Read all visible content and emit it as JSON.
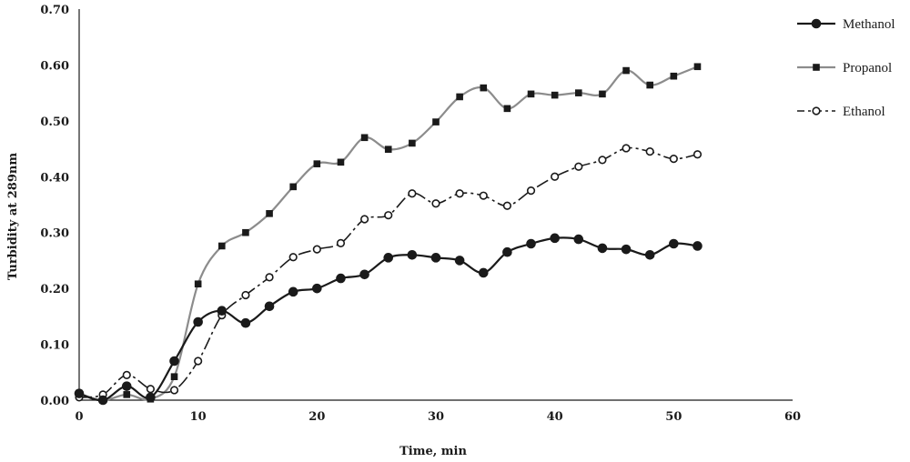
{
  "chart_data": {
    "type": "line",
    "title": "",
    "xlabel": "Time, min",
    "ylabel": "Turbidity at 289nm",
    "xlim": [
      0,
      60
    ],
    "ylim": [
      0,
      0.7
    ],
    "xticks": [
      "0",
      "10",
      "20",
      "30",
      "40",
      "50",
      "60"
    ],
    "yticks": [
      "0.00",
      "0.10",
      "0.20",
      "0.30",
      "0.40",
      "0.50",
      "0.60",
      "0.70"
    ],
    "grid": false,
    "legend_position": "top-right",
    "series": [
      {
        "name": "Methanol",
        "color": "#1a1a1a",
        "marker": "circle-filled",
        "x": [
          0,
          2,
          4,
          6,
          8,
          10,
          12,
          14,
          16,
          18,
          20,
          22,
          24,
          26,
          28,
          30,
          32,
          34,
          36,
          38,
          40,
          42,
          44,
          46,
          48,
          50,
          52
        ],
        "y": [
          0.012,
          0.0,
          0.025,
          0.005,
          0.07,
          0.14,
          0.16,
          0.138,
          0.168,
          0.194,
          0.2,
          0.218,
          0.225,
          0.255,
          0.26,
          0.255,
          0.25,
          0.228,
          0.265,
          0.28,
          0.29,
          0.288,
          0.272,
          0.27,
          0.26,
          0.28,
          0.276
        ]
      },
      {
        "name": "Propanol",
        "color": "#8c8c8c",
        "marker": "square-filled",
        "x": [
          0,
          2,
          4,
          6,
          8,
          10,
          12,
          14,
          16,
          18,
          20,
          22,
          24,
          26,
          28,
          30,
          32,
          34,
          36,
          38,
          40,
          42,
          44,
          46,
          48,
          50,
          52
        ],
        "y": [
          0.012,
          0.0,
          0.01,
          0.002,
          0.042,
          0.208,
          0.276,
          0.3,
          0.334,
          0.382,
          0.423,
          0.426,
          0.47,
          0.449,
          0.46,
          0.498,
          0.543,
          0.559,
          0.522,
          0.548,
          0.546,
          0.55,
          0.548,
          0.59,
          0.564,
          0.58,
          0.597
        ]
      },
      {
        "name": "Ethanol",
        "color": "#1a1a1a",
        "marker": "circle-open",
        "x": [
          0,
          2,
          4,
          6,
          8,
          10,
          12,
          14,
          16,
          18,
          20,
          22,
          24,
          26,
          28,
          30,
          32,
          34,
          36,
          38,
          40,
          42,
          44,
          46,
          48,
          50,
          52
        ],
        "y": [
          0.005,
          0.01,
          0.045,
          0.02,
          0.018,
          0.07,
          0.152,
          0.188,
          0.22,
          0.256,
          0.27,
          0.281,
          0.324,
          0.331,
          0.37,
          0.352,
          0.37,
          0.366,
          0.348,
          0.375,
          0.4,
          0.418,
          0.43,
          0.451,
          0.445,
          0.432,
          0.44
        ]
      }
    ]
  }
}
